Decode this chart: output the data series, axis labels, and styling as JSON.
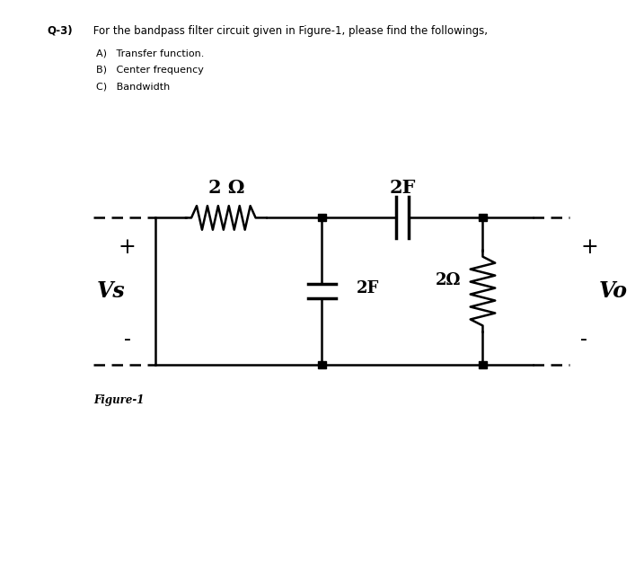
{
  "title_text": "Q-3)  For the bandpass filter circuit given in Figure-1, please find the followings,",
  "items": [
    "A)   Transfer function.",
    "B)   Center frequency",
    "C)   Bandwidth"
  ],
  "figure_label": "Figure-1",
  "background_color": "#ffffff",
  "line_color": "#000000",
  "node_color": "#000000",
  "component_labels": {
    "resistor_top": "2 Ω",
    "capacitor_top": "2F",
    "capacitor_mid": "2F",
    "resistor_right": "2Ω"
  },
  "vs_label": "Vs",
  "vo_label": "Vo",
  "plus_label": "+",
  "minus_label": "-"
}
